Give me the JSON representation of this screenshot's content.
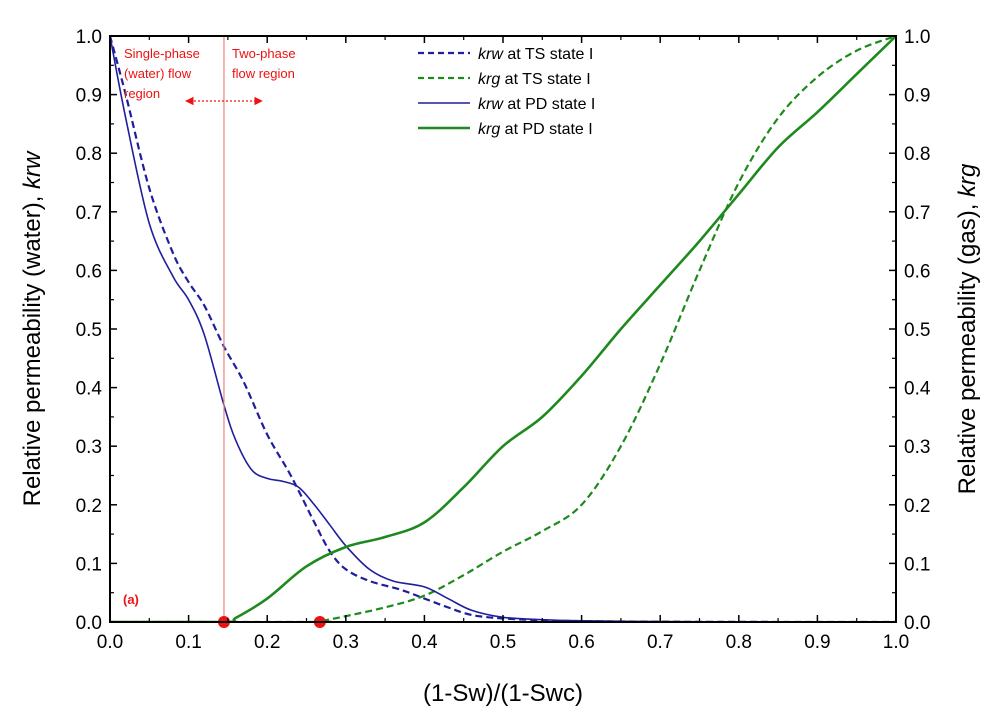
{
  "chart_data": {
    "type": "line",
    "xlabel": "(1-Sw)/(1-Swc)",
    "ylabel_left": {
      "prefix": "Relative permeability (water), ",
      "var": "krw"
    },
    "ylabel_right": {
      "prefix": "Relative permeability (gas), ",
      "var": "krg"
    },
    "xlim": [
      0,
      1
    ],
    "ylim": [
      0,
      1
    ],
    "x_ticks": [
      "0.0",
      "0.1",
      "0.2",
      "0.3",
      "0.4",
      "0.5",
      "0.6",
      "0.7",
      "0.8",
      "0.9",
      "1.0"
    ],
    "y_ticks": [
      "0.0",
      "0.1",
      "0.2",
      "0.3",
      "0.4",
      "0.5",
      "0.6",
      "0.7",
      "0.8",
      "0.9",
      "1.0"
    ],
    "grid": false,
    "legend_position": "top-center",
    "series": [
      {
        "name": "krw",
        "suffix": " at TS state I",
        "color": "#1f1f9e",
        "dashed": true,
        "x": [
          0,
          0.02,
          0.05,
          0.08,
          0.1,
          0.12,
          0.145,
          0.17,
          0.2,
          0.23,
          0.26,
          0.28,
          0.3,
          0.33,
          0.37,
          0.4,
          0.43,
          0.46,
          0.5,
          0.55,
          0.6,
          0.7,
          0.8,
          1.0
        ],
        "y": [
          1.0,
          0.9,
          0.74,
          0.63,
          0.58,
          0.54,
          0.47,
          0.41,
          0.32,
          0.25,
          0.17,
          0.12,
          0.09,
          0.07,
          0.055,
          0.04,
          0.025,
          0.012,
          0.006,
          0.003,
          0.0015,
          0.0005,
          0.0002,
          0.0
        ]
      },
      {
        "name": "krg",
        "suffix": " at TS state I",
        "color": "#1e8a1e",
        "dashed": true,
        "x": [
          0,
          0.26,
          0.27,
          0.3,
          0.35,
          0.4,
          0.45,
          0.5,
          0.55,
          0.6,
          0.65,
          0.7,
          0.75,
          0.8,
          0.85,
          0.9,
          0.95,
          1.0
        ],
        "y": [
          0,
          0,
          0.002,
          0.01,
          0.025,
          0.045,
          0.08,
          0.12,
          0.155,
          0.2,
          0.3,
          0.44,
          0.6,
          0.75,
          0.86,
          0.93,
          0.975,
          1.0
        ]
      },
      {
        "name": "krw",
        "suffix": " at PD state I",
        "color": "#1f1f9e",
        "dashed": false,
        "x": [
          0,
          0.02,
          0.05,
          0.08,
          0.1,
          0.12,
          0.145,
          0.16,
          0.18,
          0.2,
          0.22,
          0.24,
          0.26,
          0.28,
          0.3,
          0.33,
          0.36,
          0.4,
          0.43,
          0.46,
          0.5,
          0.55,
          0.6,
          0.7,
          0.8,
          1.0
        ],
        "y": [
          1.0,
          0.86,
          0.68,
          0.59,
          0.55,
          0.49,
          0.37,
          0.31,
          0.26,
          0.245,
          0.24,
          0.23,
          0.2,
          0.165,
          0.13,
          0.09,
          0.07,
          0.06,
          0.04,
          0.02,
          0.008,
          0.004,
          0.002,
          0.0007,
          0.0002,
          0.0
        ]
      },
      {
        "name": "krg",
        "suffix": " at PD state I",
        "color": "#1e8a1e",
        "dashed": false,
        "x": [
          0,
          0.145,
          0.16,
          0.2,
          0.25,
          0.3,
          0.35,
          0.4,
          0.45,
          0.5,
          0.55,
          0.6,
          0.65,
          0.7,
          0.75,
          0.8,
          0.85,
          0.9,
          0.95,
          1.0
        ],
        "y": [
          0,
          0,
          0.007,
          0.04,
          0.095,
          0.128,
          0.145,
          0.17,
          0.23,
          0.3,
          0.35,
          0.42,
          0.5,
          0.575,
          0.65,
          0.73,
          0.81,
          0.87,
          0.935,
          1.0
        ]
      }
    ],
    "markers": [
      {
        "x": 0.145,
        "y": 0.0,
        "color": "#ee1111"
      },
      {
        "x": 0.267,
        "y": 0.0,
        "color": "#ee1111"
      }
    ],
    "divider_x": 0.145,
    "annotations": {
      "single_phase": [
        "Single-phase",
        "(water) flow",
        "region"
      ],
      "two_phase": [
        "Two-phase",
        "flow region"
      ],
      "panel_label": "(a)",
      "color": "#ee1111"
    }
  }
}
